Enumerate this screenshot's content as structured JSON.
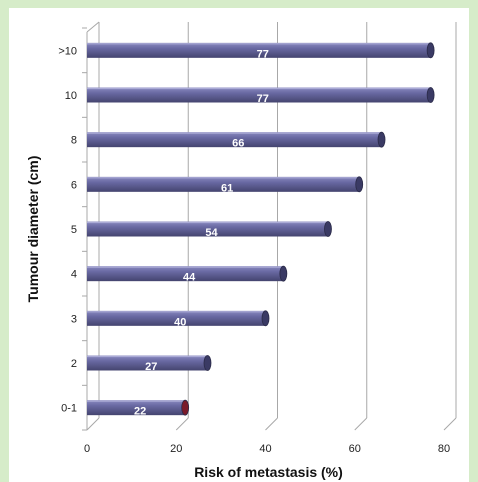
{
  "chart_data": {
    "type": "bar",
    "orientation": "horizontal",
    "style": "3d-cylinder",
    "categories": [
      "0-1",
      "2",
      "3",
      "4",
      "5",
      "6",
      "8",
      "10",
      ">10"
    ],
    "values": [
      22,
      27,
      40,
      44,
      54,
      61,
      66,
      77,
      77
    ],
    "data_labels": [
      "22",
      "27",
      "40",
      "44",
      "54",
      "61",
      "66",
      "77",
      "77"
    ],
    "xlabel": "Risk of metastasis (%)",
    "ylabel": "Tumour diameter (cm)",
    "xlim": [
      0,
      80
    ],
    "x_ticks": [
      "0",
      "20",
      "40",
      "60",
      "80"
    ],
    "grid": true,
    "colors": {
      "bar": "#5b5b91",
      "bar_highlight": "#7474ad",
      "bar_end": "#3a3a64",
      "first_bar_end": "#7a1a2a",
      "grid": "#a8a8a8",
      "background": "#d6ecc9"
    }
  }
}
